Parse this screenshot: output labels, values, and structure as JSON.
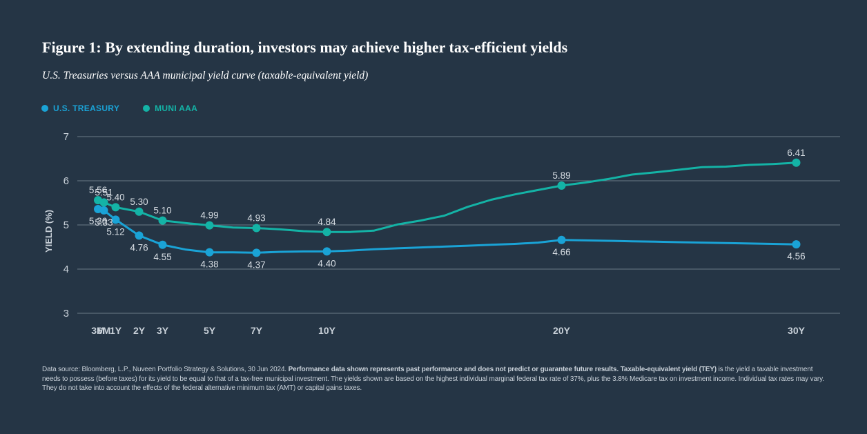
{
  "title": "Figure 1: By extending duration, investors may achieve higher tax-efficient yields",
  "subtitle": "U.S. Treasuries versus AAA municipal yield curve (taxable-equivalent yield)",
  "colors": {
    "background": "#253545",
    "treasury": "#1aa3d6",
    "muni": "#14b3a6",
    "grid": "#6b7a88",
    "axis_text": "#c9d1d9"
  },
  "footnote": {
    "part1": "Data source: Bloomberg, L.P., Nuveen Portfolio Strategy & Solutions, 30 Jun 2024. ",
    "bold1": "Performance data shown represents past performance and does not predict or guarantee future results. Taxable-equivalent yield (TEY)",
    "part2": " is the yield a taxable investment needs to possess (before taxes) for its yield to be equal to that of a tax-free municipal investment. The yields shown are based on the highest individual marginal federal tax rate of 37%, plus the 3.8% Medicare tax on investment income. Individual tax rates may vary. They do not take into account the effects of the federal alternative minimum tax (AMT) or capital gains taxes."
  },
  "chart_data": {
    "type": "line",
    "ylabel": "YIELD (%)",
    "xlabel": "",
    "ylim": [
      3,
      7
    ],
    "yticks": [
      3,
      4,
      5,
      6,
      7
    ],
    "grid": true,
    "legend_position": "top-left",
    "x_unit": "years",
    "xlim": [
      0.25,
      30
    ],
    "xticks": [
      {
        "label": "3M",
        "x": 0.25
      },
      {
        "label": "6M",
        "x": 0.5
      },
      {
        "label": "1Y",
        "x": 1
      },
      {
        "label": "2Y",
        "x": 2
      },
      {
        "label": "3Y",
        "x": 3
      },
      {
        "label": "5Y",
        "x": 5
      },
      {
        "label": "7Y",
        "x": 7
      },
      {
        "label": "10Y",
        "x": 10
      },
      {
        "label": "20Y",
        "x": 20
      },
      {
        "label": "30Y",
        "x": 30
      }
    ],
    "series": [
      {
        "name": "U.S. TREASURY",
        "color": "#1aa3d6",
        "label_side": "below",
        "x": [
          0.25,
          0.5,
          1,
          2,
          3,
          5,
          7,
          10,
          20,
          30
        ],
        "values": [
          5.36,
          5.33,
          5.12,
          4.76,
          4.55,
          4.38,
          4.37,
          4.4,
          4.66,
          4.56
        ],
        "curve": [
          [
            0.25,
            5.36
          ],
          [
            0.5,
            5.33
          ],
          [
            1,
            5.12
          ],
          [
            2,
            4.76
          ],
          [
            3,
            4.55
          ],
          [
            4,
            4.44
          ],
          [
            5,
            4.38
          ],
          [
            6,
            4.38
          ],
          [
            7,
            4.37
          ],
          [
            8,
            4.39
          ],
          [
            9,
            4.4
          ],
          [
            10,
            4.4
          ],
          [
            11,
            4.42
          ],
          [
            12,
            4.45
          ],
          [
            13,
            4.47
          ],
          [
            14,
            4.49
          ],
          [
            15,
            4.51
          ],
          [
            16,
            4.53
          ],
          [
            17,
            4.55
          ],
          [
            18,
            4.57
          ],
          [
            19,
            4.6
          ],
          [
            20,
            4.66
          ],
          [
            21,
            4.65
          ],
          [
            22,
            4.64
          ],
          [
            23,
            4.63
          ],
          [
            24,
            4.62
          ],
          [
            25,
            4.61
          ],
          [
            26,
            4.6
          ],
          [
            27,
            4.59
          ],
          [
            28,
            4.58
          ],
          [
            29,
            4.57
          ],
          [
            30,
            4.56
          ]
        ]
      },
      {
        "name": "MUNI AAA",
        "color": "#14b3a6",
        "label_side": "above",
        "x": [
          0.25,
          0.5,
          1,
          2,
          3,
          5,
          7,
          10,
          20,
          30
        ],
        "values": [
          5.56,
          5.51,
          5.4,
          5.3,
          5.1,
          4.99,
          4.93,
          4.84,
          5.89,
          6.41
        ],
        "curve": [
          [
            0.25,
            5.56
          ],
          [
            0.5,
            5.51
          ],
          [
            1,
            5.4
          ],
          [
            2,
            5.3
          ],
          [
            3,
            5.1
          ],
          [
            4,
            5.04
          ],
          [
            5,
            4.99
          ],
          [
            6,
            4.94
          ],
          [
            7,
            4.93
          ],
          [
            8,
            4.9
          ],
          [
            9,
            4.86
          ],
          [
            10,
            4.84
          ],
          [
            11,
            4.84
          ],
          [
            12,
            4.87
          ],
          [
            13,
            5.01
          ],
          [
            14,
            5.1
          ],
          [
            15,
            5.21
          ],
          [
            16,
            5.41
          ],
          [
            17,
            5.57
          ],
          [
            18,
            5.69
          ],
          [
            19,
            5.79
          ],
          [
            20,
            5.89
          ],
          [
            21,
            5.96
          ],
          [
            22,
            6.04
          ],
          [
            23,
            6.14
          ],
          [
            24,
            6.19
          ],
          [
            25,
            6.25
          ],
          [
            26,
            6.31
          ],
          [
            27,
            6.32
          ],
          [
            28,
            6.36
          ],
          [
            29,
            6.38
          ],
          [
            30,
            6.41
          ]
        ]
      }
    ]
  }
}
